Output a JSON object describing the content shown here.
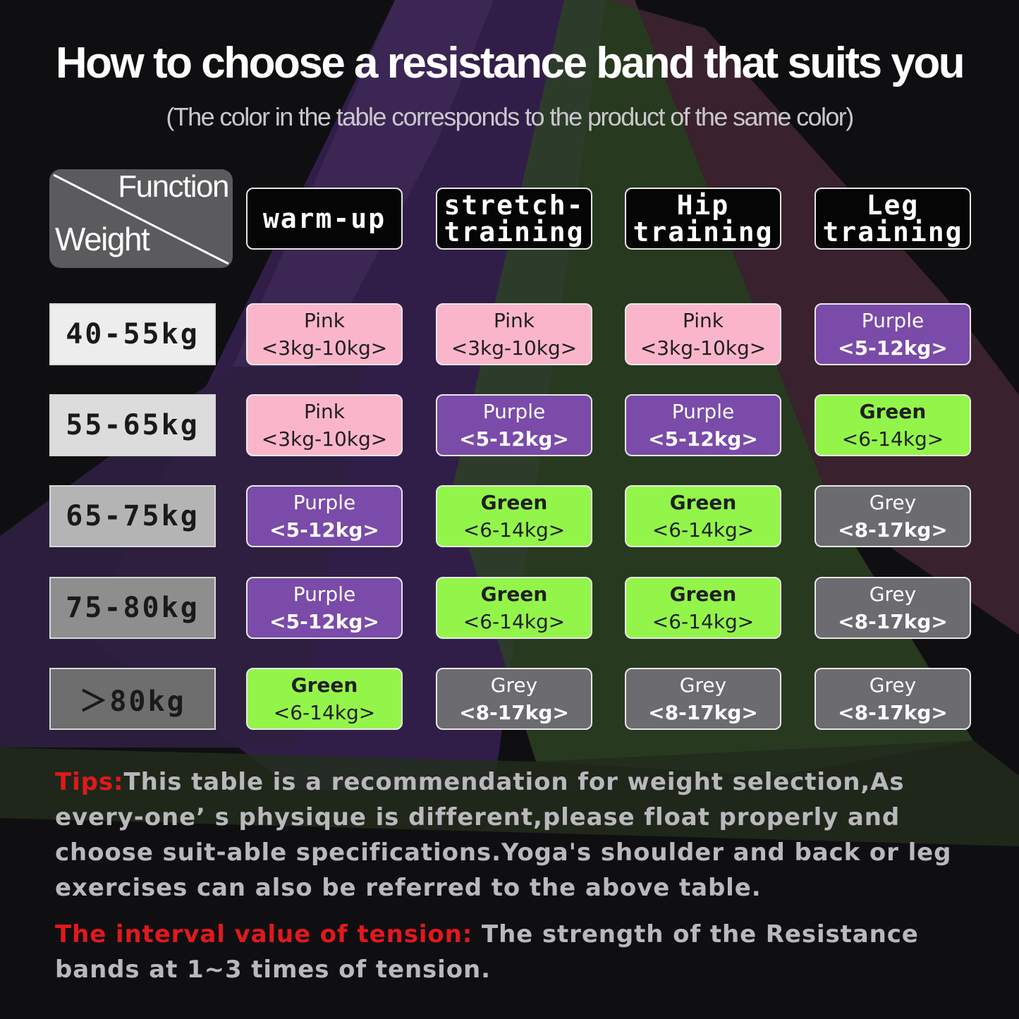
{
  "title": "How to choose a resistance band that suits you",
  "subtitle": "(The color in the table corresponds to the product of the same color)",
  "corner": {
    "function_label": "Function",
    "weight_label": "Weight"
  },
  "columns": [
    "warm-up",
    "stretch-training",
    "Hip training",
    "Leg training"
  ],
  "colors": {
    "Pink": "#fbb5cb",
    "Purple": "#7a4ba9",
    "Green": "#93f54a",
    "Grey": "#6c6b6f"
  },
  "rows": [
    {
      "weight": "40-55kg",
      "cells": [
        {
          "color": "Pink",
          "range": "<3kg-10kg>"
        },
        {
          "color": "Pink",
          "range": "<3kg-10kg>"
        },
        {
          "color": "Pink",
          "range": "<3kg-10kg>"
        },
        {
          "color": "Purple",
          "range": "<5-12kg>"
        }
      ]
    },
    {
      "weight": "55-65kg",
      "cells": [
        {
          "color": "Pink",
          "range": "<3kg-10kg>"
        },
        {
          "color": "Purple",
          "range": "<5-12kg>"
        },
        {
          "color": "Purple",
          "range": "<5-12kg>"
        },
        {
          "color": "Green",
          "range": "<6-14kg>"
        }
      ]
    },
    {
      "weight": "65-75kg",
      "cells": [
        {
          "color": "Purple",
          "range": "<5-12kg>"
        },
        {
          "color": "Green",
          "range": "<6-14kg>"
        },
        {
          "color": "Green",
          "range": "<6-14kg>"
        },
        {
          "color": "Grey",
          "range": "<8-17kg>"
        }
      ]
    },
    {
      "weight": "75-80kg",
      "cells": [
        {
          "color": "Purple",
          "range": "<5-12kg>"
        },
        {
          "color": "Green",
          "range": "<6-14kg>"
        },
        {
          "color": "Green",
          "range": "<6-14kg>"
        },
        {
          "color": "Grey",
          "range": "<8-17kg>"
        }
      ]
    },
    {
      "weight": "＞80kg",
      "cells": [
        {
          "color": "Green",
          "range": "<6-14kg>"
        },
        {
          "color": "Grey",
          "range": "<8-17kg>"
        },
        {
          "color": "Grey",
          "range": "<8-17kg>"
        },
        {
          "color": "Grey",
          "range": "<8-17kg>"
        }
      ]
    }
  ],
  "weight_box_colors": [
    "#ededed",
    "#dcdcdc",
    "#b4b4b4",
    "#8e8e8e",
    "#6e6e6e"
  ],
  "tips": {
    "label": "Tips:",
    "text": "This table is a recommendation for weight selection,As every-one’ s physique is different,please float properly and choose suit-able specifications.Yoga's shoulder and back or leg exercises can also be referred to the above table."
  },
  "interval": {
    "label": "The interval value of tension:",
    "text": " The strength of the Resistance bands at 1~3 times of tension."
  }
}
